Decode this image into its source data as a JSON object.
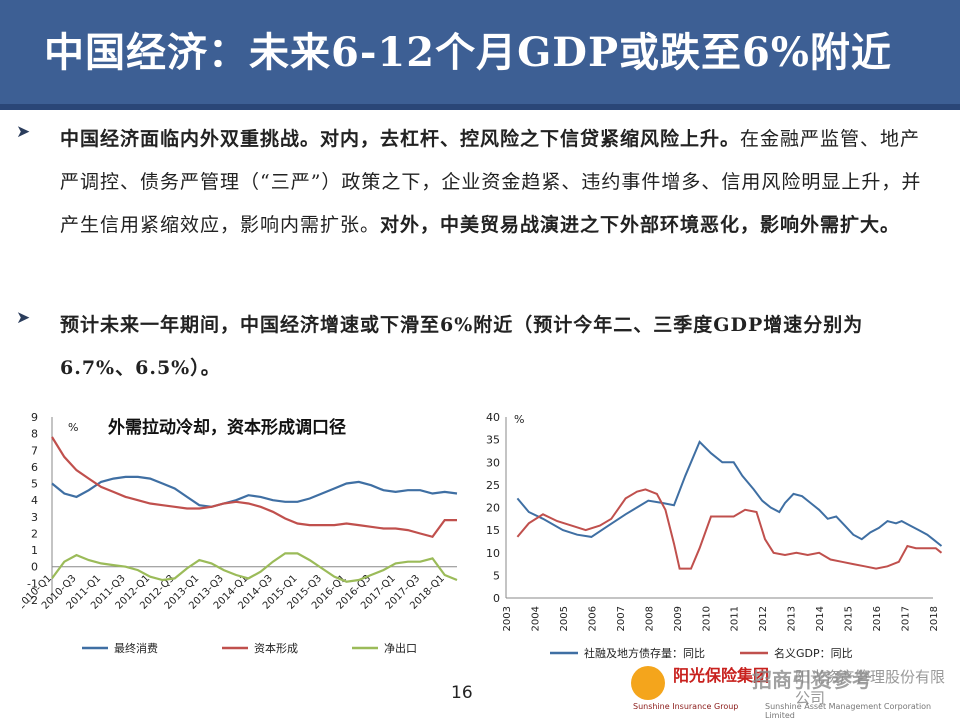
{
  "slide": {
    "title": "中国经济：未来6-12个月GDP或跌至6%附近",
    "page_number": "16",
    "bullets": [
      {
        "bold_lead": "中国经济面临内外双重挑战。对内，去杠杆、控风险之下信贷紧缩风险上升。",
        "body": "在金融严监管、地产严调控、债务严管理（“三严”）政策之下，企业资金趋紧、违约事件增多、信用风险明显上升，并产生信用紧缩效应，影响内需扩张。",
        "bold_tail": "对外，中美贸易战演进之下外部环境恶化，影响外需扩大。"
      },
      {
        "bold_lead": "预计未来一年期间，中国经济增速或下滑至6%附近（预计今年二、三季度GDP增速分别为6.7%、6.5%）。",
        "body": "",
        "bold_tail": ""
      }
    ],
    "logo": {
      "company_cn": "阳光保险集团",
      "company_en": "Sunshine Insurance Group",
      "sub_cn": "阳光资产管理股份有限公司",
      "sub_en": "Sunshine Asset Management Corporation Limited",
      "watermark": "招商引资参考"
    }
  },
  "chart_data": [
    {
      "type": "line",
      "title": "外需拉动冷却，资本形成调口径",
      "unit_label": "%",
      "ylim": [
        -2,
        9
      ],
      "yticks": [
        -2,
        -1,
        0,
        1,
        2,
        3,
        4,
        5,
        6,
        7,
        8,
        9
      ],
      "x_tick_labels": [
        "2010-Q1",
        "2010-Q3",
        "2011-Q1",
        "2011-Q3",
        "2012-Q1",
        "2012-Q3",
        "2013-Q1",
        "2013-Q3",
        "2014-Q1",
        "2014-Q3",
        "2015-Q1",
        "2015-Q3",
        "2016-Q1",
        "2016-Q3",
        "2017-Q1",
        "2017-Q3",
        "2018-Q1"
      ],
      "x": [
        "2010-Q1",
        "2010-Q2",
        "2010-Q3",
        "2010-Q4",
        "2011-Q1",
        "2011-Q2",
        "2011-Q3",
        "2011-Q4",
        "2012-Q1",
        "2012-Q2",
        "2012-Q3",
        "2012-Q4",
        "2013-Q1",
        "2013-Q2",
        "2013-Q3",
        "2013-Q4",
        "2014-Q1",
        "2014-Q2",
        "2014-Q3",
        "2014-Q4",
        "2015-Q1",
        "2015-Q2",
        "2015-Q3",
        "2015-Q4",
        "2016-Q1",
        "2016-Q2",
        "2016-Q3",
        "2016-Q4",
        "2017-Q1",
        "2017-Q2",
        "2017-Q3",
        "2017-Q4",
        "2018-Q1",
        "2018-Q2"
      ],
      "series": [
        {
          "name": "最终消费",
          "color": "#3f6fa3",
          "values": [
            5.0,
            4.4,
            4.2,
            4.6,
            5.1,
            5.3,
            5.4,
            5.4,
            5.3,
            5.0,
            4.7,
            4.2,
            3.7,
            3.6,
            3.8,
            4.0,
            4.3,
            4.2,
            4.0,
            3.9,
            3.9,
            4.1,
            4.4,
            4.7,
            5.0,
            5.1,
            4.9,
            4.6,
            4.5,
            4.6,
            4.6,
            4.4,
            4.5,
            4.4
          ]
        },
        {
          "name": "资本形成",
          "color": "#c0504d",
          "values": [
            7.8,
            6.6,
            5.8,
            5.3,
            4.8,
            4.5,
            4.2,
            4.0,
            3.8,
            3.7,
            3.6,
            3.5,
            3.5,
            3.6,
            3.8,
            3.9,
            3.8,
            3.6,
            3.3,
            2.9,
            2.6,
            2.5,
            2.5,
            2.5,
            2.6,
            2.5,
            2.4,
            2.3,
            2.3,
            2.2,
            2.0,
            1.8,
            2.8,
            2.8
          ]
        },
        {
          "name": "净出口",
          "color": "#9bbb59",
          "values": [
            -0.7,
            0.3,
            0.7,
            0.4,
            0.2,
            0.1,
            0.0,
            -0.2,
            -0.6,
            -0.8,
            -0.7,
            -0.1,
            0.4,
            0.2,
            -0.2,
            -0.5,
            -0.7,
            -0.3,
            0.3,
            0.8,
            0.8,
            0.4,
            -0.1,
            -0.6,
            -0.9,
            -0.8,
            -0.5,
            -0.2,
            0.2,
            0.3,
            0.3,
            0.5,
            -0.5,
            -0.8
          ]
        }
      ],
      "legend_position": "bottom"
    },
    {
      "type": "line",
      "unit_label": "%",
      "ylim": [
        0,
        40
      ],
      "yticks": [
        0,
        5,
        10,
        15,
        20,
        25,
        30,
        35,
        40
      ],
      "x_range": [
        2003,
        2018
      ],
      "x_tick_labels": [
        "2003",
        "2004",
        "2005",
        "2006",
        "2007",
        "2008",
        "2009",
        "2010",
        "2011",
        "2012",
        "2013",
        "2014",
        "2015",
        "2016",
        "2017",
        "2018"
      ],
      "series": [
        {
          "name": "社融及地方债存量：同比",
          "color": "#3f6fa3",
          "x": [
            2003.4,
            2003.8,
            2004.3,
            2005.0,
            2005.5,
            2006.0,
            2006.6,
            2007.2,
            2007.6,
            2008.0,
            2008.5,
            2008.9,
            2009.3,
            2009.8,
            2010.2,
            2010.6,
            2011.0,
            2011.3,
            2011.7,
            2012.0,
            2012.3,
            2012.6,
            2012.8,
            2013.1,
            2013.4,
            2013.7,
            2014.0,
            2014.3,
            2014.6,
            2014.9,
            2015.2,
            2015.5,
            2015.8,
            2016.1,
            2016.4,
            2016.7,
            2016.9,
            2017.2,
            2017.5,
            2017.8,
            2018.0,
            2018.3
          ],
          "values": [
            22.0,
            19.0,
            17.5,
            15.0,
            14.0,
            13.5,
            16.0,
            18.5,
            20.0,
            21.5,
            21.0,
            20.5,
            27.0,
            34.5,
            32.0,
            30.0,
            30.0,
            27.0,
            24.0,
            21.5,
            20.0,
            19.0,
            21.0,
            23.0,
            22.5,
            21.0,
            19.5,
            17.5,
            18.0,
            16.0,
            14.0,
            13.0,
            14.5,
            15.5,
            17.0,
            16.5,
            17.0,
            16.0,
            15.0,
            14.0,
            13.0,
            11.5
          ]
        },
        {
          "name": "名义GDP：同比",
          "color": "#c0504d",
          "x": [
            2003.4,
            2003.8,
            2004.3,
            2004.8,
            2005.3,
            2005.8,
            2006.3,
            2006.7,
            2007.2,
            2007.6,
            2007.9,
            2008.3,
            2008.6,
            2008.9,
            2009.1,
            2009.5,
            2009.8,
            2010.2,
            2010.6,
            2011.0,
            2011.4,
            2011.8,
            2012.1,
            2012.4,
            2012.8,
            2013.2,
            2013.6,
            2014.0,
            2014.4,
            2014.8,
            2015.2,
            2015.6,
            2016.0,
            2016.4,
            2016.8,
            2017.1,
            2017.4,
            2017.8,
            2018.1,
            2018.3
          ],
          "values": [
            13.5,
            16.5,
            18.5,
            17.0,
            16.0,
            15.0,
            16.0,
            17.5,
            22.0,
            23.5,
            24.0,
            23.0,
            19.5,
            12.0,
            6.5,
            6.5,
            11.0,
            18.0,
            18.0,
            18.0,
            19.5,
            19.0,
            13.0,
            10.0,
            9.5,
            10.0,
            9.5,
            10.0,
            8.5,
            8.0,
            7.5,
            7.0,
            6.5,
            7.0,
            8.0,
            11.5,
            11.0,
            11.0,
            11.0,
            10.0
          ]
        }
      ],
      "legend_position": "bottom"
    }
  ]
}
